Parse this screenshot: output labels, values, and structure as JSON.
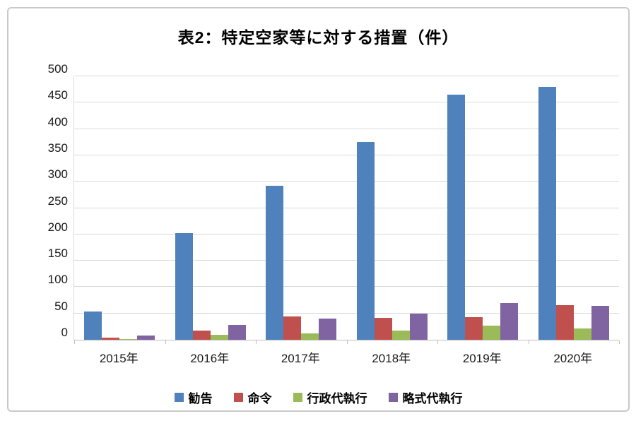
{
  "chart_data": {
    "type": "bar",
    "title": "表2：特定空家等に対する措置（件）",
    "categories": [
      "2015年",
      "2016年",
      "2017年",
      "2018年",
      "2019年",
      "2020年"
    ],
    "series": [
      {
        "name": "勧告",
        "color": "#4F81BD",
        "values": [
          54,
          202,
          292,
          375,
          465,
          480
        ]
      },
      {
        "name": "命令",
        "color": "#C0504D",
        "values": [
          4,
          17,
          44,
          42,
          43,
          66
        ]
      },
      {
        "name": "行政代執行",
        "color": "#9BBB59",
        "values": [
          1,
          10,
          12,
          18,
          27,
          22
        ]
      },
      {
        "name": "略式代執行",
        "color": "#8064A2",
        "values": [
          8,
          28,
          40,
          49,
          70,
          65
        ]
      }
    ],
    "xlabel": "",
    "ylabel": "",
    "ylim": [
      0,
      500
    ],
    "yticks": [
      0,
      50,
      100,
      150,
      200,
      250,
      300,
      350,
      400,
      450,
      500
    ],
    "grid": true,
    "legend_position": "bottom",
    "colors": {
      "gridline": "#d9d9d9",
      "axis": "#bfbfbf",
      "frame_border": "#c9c9c9",
      "text": "#000000"
    }
  }
}
